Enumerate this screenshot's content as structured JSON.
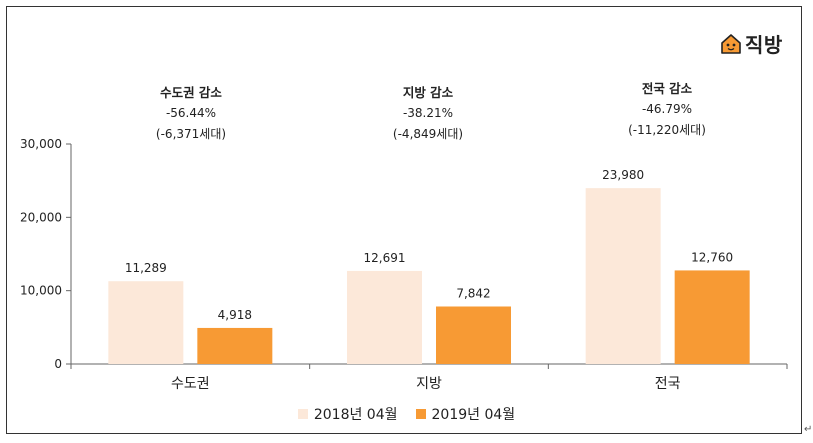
{
  "chart_data": {
    "type": "bar",
    "categories": [
      "수도권",
      "지방",
      "전국"
    ],
    "series": [
      {
        "name": "2018년 04월",
        "values": [
          11289,
          12691,
          23980
        ],
        "labels": [
          "11,289",
          "12,691",
          "23,980"
        ],
        "color": "#fce8d9"
      },
      {
        "name": "2019년 04월",
        "values": [
          4918,
          7842,
          12760
        ],
        "labels": [
          "4,918",
          "7,842",
          "12,760"
        ],
        "color": "#f79a34"
      }
    ],
    "ylim": [
      0,
      30000
    ],
    "yticks": [
      0,
      10000,
      20000,
      30000
    ],
    "ytick_labels": [
      "0",
      "10,000",
      "20,000",
      "30,000"
    ],
    "grid": false,
    "legend": "bottom",
    "title": "",
    "xlabel": "",
    "ylabel": ""
  },
  "annotations": [
    {
      "title": "수도권  감소",
      "pct": "-56.44%",
      "diff": "(-6,371세대)"
    },
    {
      "title": "지방 감소",
      "pct": "-38.21%",
      "diff": "(-4,849세대)"
    },
    {
      "title": "전국 감소",
      "pct": "-46.79%",
      "diff": "(-11,220세대)"
    }
  ],
  "logo": {
    "text": "직방",
    "icon": "house-face-icon",
    "color": "#f79a34"
  },
  "return_mark": "↵"
}
